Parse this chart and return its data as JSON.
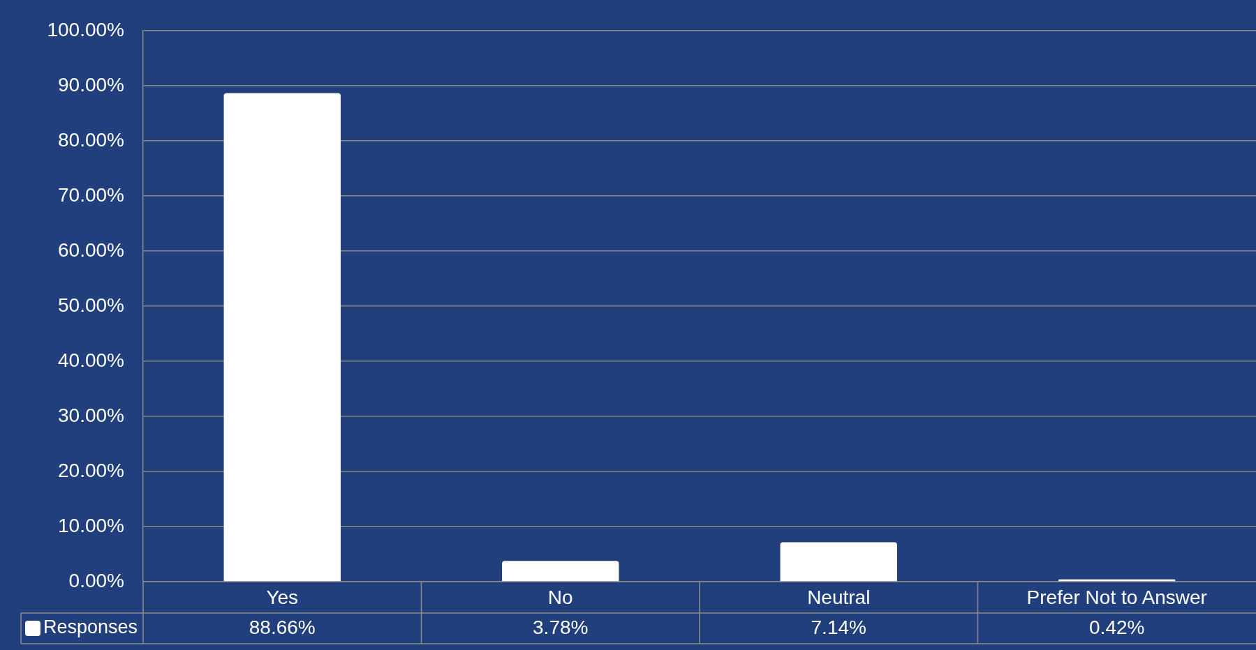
{
  "chart_data": {
    "type": "bar",
    "categories": [
      "Yes",
      "No",
      "Neutral",
      "Prefer Not to Answer"
    ],
    "series": [
      {
        "name": "Responses",
        "color": "#ffffff",
        "values": [
          88.66,
          3.78,
          7.14,
          0.42
        ],
        "value_labels": [
          "88.66%",
          "3.78%",
          "7.14%",
          "0.42%"
        ]
      }
    ],
    "ylim": [
      0,
      100
    ],
    "yticks": [
      {
        "value": 0,
        "label": "0.00%"
      },
      {
        "value": 10,
        "label": "10.00%"
      },
      {
        "value": 20,
        "label": "20.00%"
      },
      {
        "value": 30,
        "label": "30.00%"
      },
      {
        "value": 40,
        "label": "40.00%"
      },
      {
        "value": 50,
        "label": "50.00%"
      },
      {
        "value": 60,
        "label": "60.00%"
      },
      {
        "value": 70,
        "label": "70.00%"
      },
      {
        "value": 80,
        "label": "80.00%"
      },
      {
        "value": 90,
        "label": "90.00%"
      },
      {
        "value": 100,
        "label": "100.00%"
      }
    ],
    "grid": "y",
    "legend": "bottom left"
  }
}
